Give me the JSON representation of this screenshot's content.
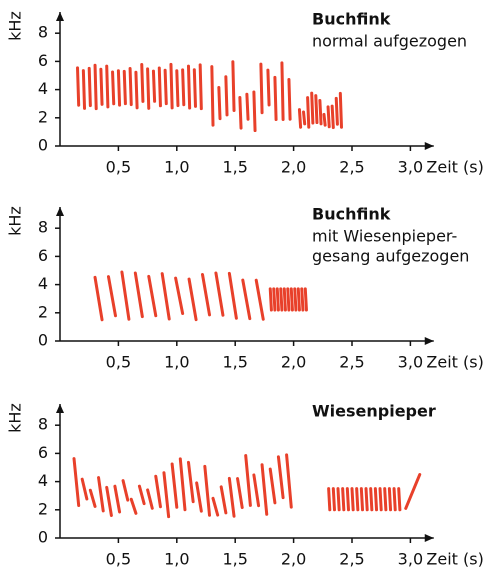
{
  "chart_data": [
    {
      "type": "spectrogram",
      "title": "Buchfink",
      "subtitle": [
        "normal aufgezogen"
      ],
      "xlabel": "Zeit (s)",
      "ylabel": "kHz",
      "xlim": [
        0,
        3.2
      ],
      "ylim": [
        0,
        9.5
      ],
      "xticks": [
        {
          "value": 0.5,
          "label": "0,5"
        },
        {
          "value": 1.0,
          "label": "1,0"
        },
        {
          "value": 1.5,
          "label": "1,5"
        },
        {
          "value": 2.0,
          "label": "2,0"
        },
        {
          "value": 2.5,
          "label": "2,5"
        },
        {
          "value": 3.0,
          "label": "3,0"
        }
      ],
      "yticks": [
        0,
        2,
        4,
        6,
        8
      ],
      "color": "#e8402a"
    },
    {
      "type": "spectrogram",
      "title": "Buchfink",
      "subtitle": [
        "mit Wiesenpieper-",
        "gesang aufgezogen"
      ],
      "xlabel": "Zeit (s)",
      "ylabel": "kHz",
      "xlim": [
        0,
        3.2
      ],
      "ylim": [
        0,
        9.5
      ],
      "xticks": [
        {
          "value": 0.5,
          "label": "0,5"
        },
        {
          "value": 1.0,
          "label": "1,0"
        },
        {
          "value": 1.5,
          "label": "1,5"
        },
        {
          "value": 2.0,
          "label": "2,0"
        },
        {
          "value": 2.5,
          "label": "2,5"
        },
        {
          "value": 3.0,
          "label": "3,0"
        }
      ],
      "yticks": [
        0,
        2,
        4,
        6,
        8
      ],
      "color": "#e8402a"
    },
    {
      "type": "spectrogram",
      "title": "Wiesenpieper",
      "subtitle": [],
      "xlabel": "Zeit (s)",
      "ylabel": "kHz",
      "xlim": [
        0,
        3.2
      ],
      "ylim": [
        0,
        9.5
      ],
      "xticks": [
        {
          "value": 0.5,
          "label": "0,5"
        },
        {
          "value": 1.0,
          "label": "1,0"
        },
        {
          "value": 1.5,
          "label": "1,5"
        },
        {
          "value": 2.0,
          "label": "2,0"
        },
        {
          "value": 2.5,
          "label": "2,5"
        },
        {
          "value": 3.0,
          "label": "3,0"
        }
      ],
      "yticks": [
        0,
        2,
        4,
        6,
        8
      ],
      "color": "#e8402a"
    }
  ]
}
